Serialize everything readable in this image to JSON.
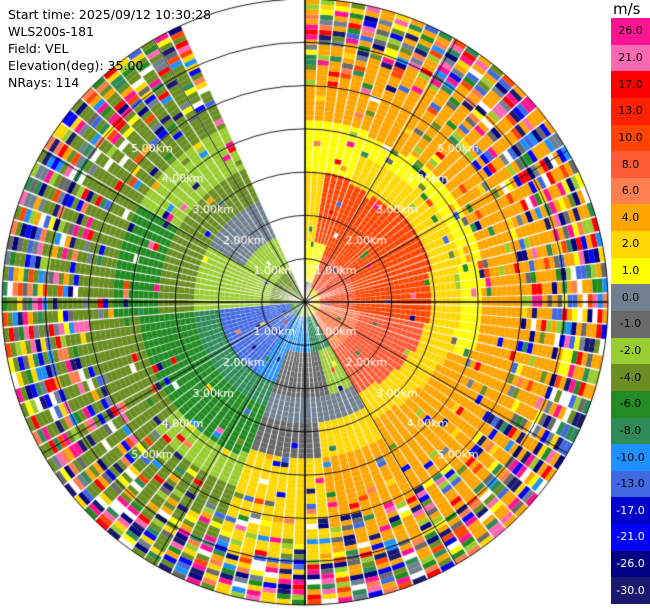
{
  "info": {
    "start_time": "Start time: 2025/09/12 10:30:28",
    "instrument": "WLS200s-181",
    "field": "Field: VEL",
    "elevation": "Elevation(deg): 35.00",
    "nrays": "NRays: 114"
  },
  "chart_data": {
    "type": "heatmap",
    "projection": "polar-ppi",
    "field": "VEL",
    "units": "m/s",
    "elevation_deg": 35.0,
    "n_rays": 114,
    "max_range_km": 7.0,
    "range_rings_km": [
      1,
      2,
      3,
      4,
      5,
      6,
      7
    ],
    "ring_labels": [
      "1.00km",
      "2.00km",
      "3.00km",
      "4.00km",
      "5.00km"
    ],
    "gap_azimuth_deg": [
      336,
      360
    ],
    "colorbar": {
      "label": "m/s",
      "tick_labels": [
        "26.0",
        "21.0",
        "17.0",
        "13.0",
        "10.0",
        "8.0",
        "6.0",
        "4.0",
        "2.0",
        "1.0",
        "0.0",
        "-1.0",
        "-2.0",
        "-4.0",
        "-6.0",
        "-8.0",
        "-10.0",
        "-13.0",
        "-17.0",
        "-21.0",
        "-26.0",
        "-30.0"
      ],
      "colors": [
        "#ff1493",
        "#ff69b4",
        "#ff0000",
        "#ff2200",
        "#ff4500",
        "#ff5a36",
        "#ff7f50",
        "#ffa500",
        "#ffd700",
        "#ffff00",
        "#708090",
        "#696969",
        "#9acd32",
        "#6b8e23",
        "#228b22",
        "#2e8b57",
        "#1e90ff",
        "#4169e1",
        "#0000cd",
        "#0000ff",
        "#000080",
        "#191970"
      ]
    },
    "sectors": [
      {
        "az_from": 0,
        "az_to": 150,
        "inner": "red-orange 10 to 13",
        "mid": "yellow 2 to 4",
        "outer": "orange 6"
      },
      {
        "az_from": 150,
        "az_to": 200,
        "inner": "blue/green -6 to -10",
        "mid": "gray 0",
        "outer": "yellow 4"
      },
      {
        "az_from": 200,
        "az_to": 260,
        "inner": "blue -10",
        "mid": "green -6",
        "outer": "olive -4"
      },
      {
        "az_from": 260,
        "az_to": 336,
        "inner": "olive -2",
        "mid": "green -6",
        "outer": "olive -4"
      }
    ]
  }
}
